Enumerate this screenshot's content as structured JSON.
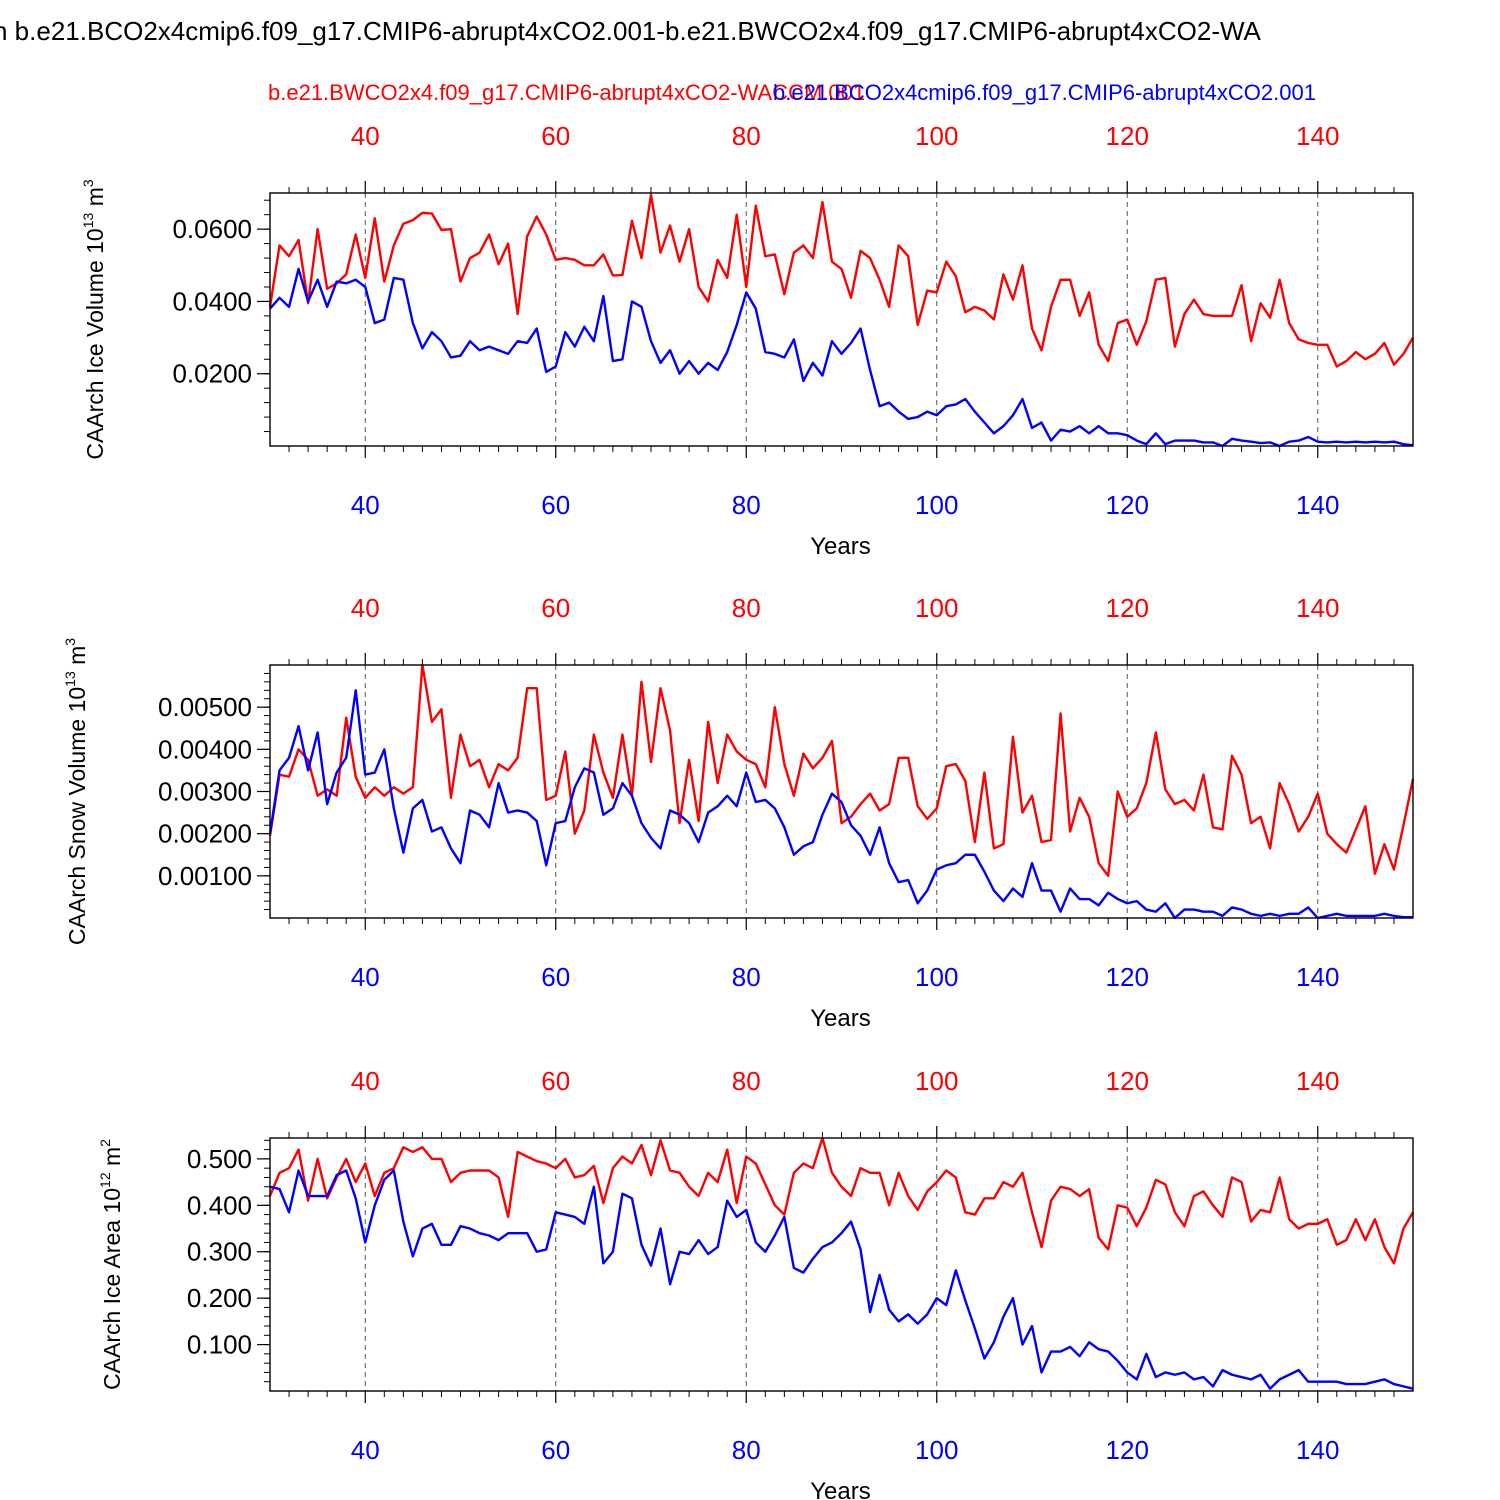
{
  "page": {
    "title": "n b.e21.BCO2x4cmip6.f09_g17.CMIP6-abrupt4xCO2.001-b.e21.BWCO2x4.f09_g17.CMIP6-abrupt4xCO2-WA",
    "case_red": "b.e21.BWCO2x4.f09_g17.CMIP6-abrupt4xCO2-WACCM.001",
    "case_blue": "b.e21.BCO2x4cmip6.f09_g17.CMIP6-abrupt4xCO2.001",
    "colors": {
      "red": "#ff0000",
      "blue": "#0000ff"
    }
  },
  "chart_data": [
    {
      "type": "line",
      "ylabel_main": "CAArch Ice Volume 10",
      "ylabel_exp": "13",
      "ylabel_unit": " m",
      "ylabel_unitexp": "3",
      "xlabel": "Years",
      "xlim": [
        30,
        150
      ],
      "ylim": [
        0,
        0.07
      ],
      "xticks": [
        40,
        60,
        80,
        100,
        120,
        140
      ],
      "xtick_labels": [
        "40",
        "60",
        "80",
        "100",
        "120",
        "140"
      ],
      "yticks": [
        0.02,
        0.04,
        0.06
      ],
      "ytick_labels": [
        "0.0200",
        "0.0400",
        "0.0600"
      ],
      "yminor_step": 0.004,
      "series": [
        {
          "name": "b.e21.BWCO2x4.f09_g17.CMIP6-abrupt4xCO2-WACCM.001",
          "color": "#ff0000",
          "x_start": 30,
          "values": [
            0.0385,
            0.0555,
            0.0525,
            0.057,
            0.0395,
            0.06,
            0.0435,
            0.045,
            0.0475,
            0.0585,
            0.0465,
            0.063,
            0.0455,
            0.0555,
            0.0615,
            0.0625,
            0.0645,
            0.0643,
            0.0598,
            0.06,
            0.0455,
            0.052,
            0.0535,
            0.0585,
            0.0503,
            0.056,
            0.0365,
            0.058,
            0.0635,
            0.0585,
            0.0515,
            0.052,
            0.0515,
            0.05,
            0.05,
            0.053,
            0.0472,
            0.0473,
            0.0623,
            0.052,
            0.0695,
            0.0535,
            0.061,
            0.051,
            0.06,
            0.044,
            0.04,
            0.0515,
            0.0465,
            0.064,
            0.044,
            0.0665,
            0.0525,
            0.053,
            0.042,
            0.0535,
            0.0555,
            0.052,
            0.0675,
            0.051,
            0.049,
            0.041,
            0.054,
            0.052,
            0.046,
            0.0385,
            0.0555,
            0.0525,
            0.0335,
            0.043,
            0.0425,
            0.051,
            0.047,
            0.037,
            0.0385,
            0.0375,
            0.035,
            0.0475,
            0.0405,
            0.05,
            0.0325,
            0.0265,
            0.0385,
            0.046,
            0.046,
            0.036,
            0.0425,
            0.028,
            0.0235,
            0.034,
            0.035,
            0.028,
            0.0345,
            0.046,
            0.0465,
            0.0275,
            0.0365,
            0.0405,
            0.0365,
            0.036,
            0.036,
            0.036,
            0.0445,
            0.029,
            0.0395,
            0.0355,
            0.046,
            0.034,
            0.0295,
            0.0285,
            0.028,
            0.028,
            0.022,
            0.0235,
            0.026,
            0.024,
            0.0255,
            0.0285,
            0.0225,
            0.0255,
            0.03
          ]
        },
        {
          "name": "b.e21.BCO2x4cmip6.f09_g17.CMIP6-abrupt4xCO2.001",
          "color": "#0000ff",
          "x_start": 30,
          "values": [
            0.038,
            0.041,
            0.0385,
            0.049,
            0.04,
            0.046,
            0.0385,
            0.0455,
            0.045,
            0.046,
            0.044,
            0.034,
            0.035,
            0.0465,
            0.046,
            0.034,
            0.027,
            0.0315,
            0.029,
            0.0245,
            0.025,
            0.029,
            0.0265,
            0.0275,
            0.0265,
            0.0255,
            0.029,
            0.0285,
            0.0325,
            0.0205,
            0.022,
            0.0315,
            0.0275,
            0.033,
            0.029,
            0.0415,
            0.0235,
            0.024,
            0.04,
            0.0385,
            0.029,
            0.023,
            0.0265,
            0.02,
            0.0235,
            0.02,
            0.023,
            0.021,
            0.026,
            0.0335,
            0.0425,
            0.038,
            0.026,
            0.0255,
            0.0245,
            0.0295,
            0.018,
            0.023,
            0.0195,
            0.029,
            0.0255,
            0.0285,
            0.0325,
            0.021,
            0.011,
            0.012,
            0.0095,
            0.0075,
            0.008,
            0.0095,
            0.0085,
            0.011,
            0.0115,
            0.013,
            0.0095,
            0.0065,
            0.0035,
            0.0055,
            0.0085,
            0.013,
            0.005,
            0.0065,
            0.0015,
            0.0045,
            0.004,
            0.0055,
            0.0035,
            0.0055,
            0.0035,
            0.0035,
            0.003,
            0.0015,
            0.0005,
            0.0035,
            0.0005,
            0.0015,
            0.0015,
            0.0015,
            0.001,
            0.001,
            0.0,
            0.002,
            0.0015,
            0.0012,
            0.0008,
            0.001,
            0.0,
            0.0012,
            0.0015,
            0.0025,
            0.0012,
            0.001,
            0.0012,
            0.001,
            0.0012,
            0.001,
            0.0012,
            0.001,
            0.0012,
            0.0005,
            0.0002
          ]
        }
      ]
    },
    {
      "type": "line",
      "ylabel_main": "CAArch Snow Volume 10",
      "ylabel_exp": "13",
      "ylabel_unit": " m",
      "ylabel_unitexp": "3",
      "xlabel": "Years",
      "xlim": [
        30,
        150
      ],
      "ylim": [
        0,
        0.006
      ],
      "xticks": [
        40,
        60,
        80,
        100,
        120,
        140
      ],
      "xtick_labels": [
        "40",
        "60",
        "80",
        "100",
        "120",
        "140"
      ],
      "yticks": [
        0.001,
        0.002,
        0.003,
        0.004,
        0.005
      ],
      "ytick_labels": [
        "0.00100",
        "0.00200",
        "0.00300",
        "0.00400",
        "0.00500"
      ],
      "yminor_step": 0.0002,
      "series": [
        {
          "name": "b.e21.BWCO2x4.f09_g17.CMIP6-abrupt4xCO2-WACCM.001",
          "color": "#ff0000",
          "x_start": 30,
          "values": [
            0.00195,
            0.0034,
            0.00335,
            0.004,
            0.00375,
            0.0029,
            0.00305,
            0.0029,
            0.00475,
            0.00335,
            0.00285,
            0.0031,
            0.0029,
            0.0031,
            0.00295,
            0.0031,
            0.006,
            0.00465,
            0.00495,
            0.00285,
            0.00435,
            0.0036,
            0.00375,
            0.0031,
            0.00365,
            0.0035,
            0.0038,
            0.00545,
            0.00545,
            0.0028,
            0.0029,
            0.00395,
            0.002,
            0.00255,
            0.00435,
            0.00345,
            0.00285,
            0.00435,
            0.0029,
            0.0056,
            0.0037,
            0.00545,
            0.00445,
            0.00225,
            0.00375,
            0.0023,
            0.00465,
            0.0032,
            0.00435,
            0.00395,
            0.00375,
            0.00365,
            0.0031,
            0.005,
            0.00365,
            0.0029,
            0.0039,
            0.00355,
            0.0038,
            0.0042,
            0.00225,
            0.0024,
            0.0027,
            0.00295,
            0.00255,
            0.0027,
            0.0038,
            0.0038,
            0.00265,
            0.00235,
            0.0026,
            0.0036,
            0.00365,
            0.00325,
            0.0018,
            0.00345,
            0.00165,
            0.00175,
            0.0043,
            0.0025,
            0.0029,
            0.0018,
            0.00185,
            0.00485,
            0.00205,
            0.00285,
            0.0024,
            0.0013,
            0.001,
            0.003,
            0.0024,
            0.0026,
            0.0032,
            0.0044,
            0.00305,
            0.0027,
            0.0028,
            0.00255,
            0.0034,
            0.00215,
            0.0021,
            0.00385,
            0.0034,
            0.00225,
            0.0024,
            0.00165,
            0.0032,
            0.0027,
            0.00205,
            0.0024,
            0.00295,
            0.002,
            0.00175,
            0.00155,
            0.0021,
            0.00265,
            0.00105,
            0.00175,
            0.00115,
            0.0022,
            0.0033
          ]
        },
        {
          "name": "b.e21.BCO2x4cmip6.f09_g17.CMIP6-abrupt4xCO2.001",
          "color": "#0000ff",
          "x_start": 30,
          "values": [
            0.002,
            0.0035,
            0.0038,
            0.00455,
            0.0035,
            0.0044,
            0.0027,
            0.00345,
            0.0038,
            0.0054,
            0.0034,
            0.00345,
            0.004,
            0.0026,
            0.00155,
            0.0026,
            0.0028,
            0.00205,
            0.00215,
            0.00165,
            0.0013,
            0.00255,
            0.00245,
            0.00215,
            0.0032,
            0.0025,
            0.00255,
            0.0025,
            0.0023,
            0.00125,
            0.00225,
            0.0023,
            0.0031,
            0.00355,
            0.00345,
            0.00245,
            0.0026,
            0.0032,
            0.0029,
            0.00225,
            0.0019,
            0.00165,
            0.00255,
            0.00245,
            0.00225,
            0.0018,
            0.0025,
            0.00265,
            0.0029,
            0.00265,
            0.00345,
            0.00275,
            0.0028,
            0.0026,
            0.00215,
            0.0015,
            0.0017,
            0.0018,
            0.00245,
            0.00295,
            0.00275,
            0.0022,
            0.00195,
            0.0015,
            0.00215,
            0.0013,
            0.00085,
            0.0009,
            0.00035,
            0.00065,
            0.00115,
            0.00125,
            0.0013,
            0.0015,
            0.0015,
            0.0011,
            0.00065,
            0.0004,
            0.0007,
            0.0005,
            0.0013,
            0.00065,
            0.00065,
            0.00015,
            0.0007,
            0.00045,
            0.00045,
            0.0003,
            0.0006,
            0.00045,
            0.00035,
            0.0004,
            0.0002,
            0.00015,
            0.00035,
            0.0,
            0.0002,
            0.0002,
            0.00015,
            0.00015,
            5e-05,
            0.00025,
            0.0002,
            0.0001,
            5e-05,
            0.0001,
            5e-05,
            0.0001,
            0.0001,
            0.00025,
            0.0,
            5e-05,
            0.0001,
            5e-05,
            5e-05,
            5e-05,
            5e-05,
            0.0001,
            5e-05,
            2e-05,
            2e-05
          ]
        }
      ]
    },
    {
      "type": "line",
      "ylabel_main": "CAArch Ice Area 10",
      "ylabel_exp": "12",
      "ylabel_unit": " m",
      "ylabel_unitexp": "2",
      "xlabel": "Years",
      "xlim": [
        30,
        150
      ],
      "ylim": [
        0,
        0.545
      ],
      "xticks": [
        40,
        60,
        80,
        100,
        120,
        140
      ],
      "xtick_labels": [
        "40",
        "60",
        "80",
        "100",
        "120",
        "140"
      ],
      "yticks": [
        0.1,
        0.2,
        0.3,
        0.4,
        0.5
      ],
      "ytick_labels": [
        "0.100",
        "0.200",
        "0.300",
        "0.400",
        "0.500"
      ],
      "yminor_step": 0.02,
      "series": [
        {
          "name": "b.e21.BWCO2x4.f09_g17.CMIP6-abrupt4xCO2-WACCM.001",
          "color": "#ff0000",
          "x_start": 30,
          "values": [
            0.42,
            0.47,
            0.48,
            0.52,
            0.41,
            0.5,
            0.415,
            0.46,
            0.5,
            0.45,
            0.49,
            0.42,
            0.47,
            0.48,
            0.525,
            0.515,
            0.525,
            0.5,
            0.5,
            0.45,
            0.47,
            0.475,
            0.475,
            0.475,
            0.46,
            0.375,
            0.515,
            0.505,
            0.495,
            0.49,
            0.48,
            0.5,
            0.46,
            0.465,
            0.485,
            0.405,
            0.48,
            0.505,
            0.49,
            0.53,
            0.465,
            0.54,
            0.475,
            0.47,
            0.44,
            0.42,
            0.47,
            0.45,
            0.52,
            0.405,
            0.505,
            0.49,
            0.445,
            0.4,
            0.38,
            0.47,
            0.49,
            0.48,
            0.545,
            0.47,
            0.44,
            0.42,
            0.48,
            0.47,
            0.47,
            0.4,
            0.47,
            0.42,
            0.39,
            0.43,
            0.45,
            0.475,
            0.46,
            0.385,
            0.38,
            0.415,
            0.415,
            0.45,
            0.44,
            0.47,
            0.385,
            0.31,
            0.41,
            0.44,
            0.435,
            0.42,
            0.435,
            0.33,
            0.305,
            0.4,
            0.395,
            0.355,
            0.395,
            0.455,
            0.445,
            0.385,
            0.355,
            0.42,
            0.43,
            0.4,
            0.375,
            0.46,
            0.45,
            0.365,
            0.39,
            0.385,
            0.46,
            0.37,
            0.35,
            0.36,
            0.36,
            0.37,
            0.315,
            0.325,
            0.37,
            0.325,
            0.37,
            0.31,
            0.275,
            0.35,
            0.385
          ]
        },
        {
          "name": "b.e21.BCO2x4cmip6.f09_g17.CMIP6-abrupt4xCO2.001",
          "color": "#0000ff",
          "x_start": 30,
          "values": [
            0.44,
            0.435,
            0.385,
            0.475,
            0.42,
            0.42,
            0.42,
            0.465,
            0.475,
            0.415,
            0.32,
            0.4,
            0.455,
            0.475,
            0.365,
            0.29,
            0.35,
            0.36,
            0.315,
            0.315,
            0.355,
            0.35,
            0.34,
            0.335,
            0.325,
            0.34,
            0.34,
            0.34,
            0.3,
            0.305,
            0.385,
            0.38,
            0.375,
            0.36,
            0.44,
            0.275,
            0.3,
            0.425,
            0.415,
            0.315,
            0.27,
            0.35,
            0.23,
            0.3,
            0.295,
            0.325,
            0.295,
            0.31,
            0.41,
            0.375,
            0.39,
            0.32,
            0.3,
            0.335,
            0.375,
            0.265,
            0.255,
            0.285,
            0.31,
            0.32,
            0.34,
            0.365,
            0.305,
            0.17,
            0.25,
            0.175,
            0.15,
            0.165,
            0.145,
            0.165,
            0.2,
            0.185,
            0.26,
            0.195,
            0.135,
            0.07,
            0.105,
            0.16,
            0.2,
            0.1,
            0.14,
            0.04,
            0.085,
            0.085,
            0.095,
            0.075,
            0.105,
            0.09,
            0.085,
            0.065,
            0.04,
            0.025,
            0.08,
            0.03,
            0.04,
            0.035,
            0.04,
            0.025,
            0.03,
            0.01,
            0.045,
            0.035,
            0.03,
            0.025,
            0.035,
            0.005,
            0.025,
            0.035,
            0.045,
            0.02,
            0.02,
            0.02,
            0.02,
            0.015,
            0.015,
            0.015,
            0.02,
            0.025,
            0.015,
            0.01,
            0.005
          ]
        }
      ]
    }
  ]
}
